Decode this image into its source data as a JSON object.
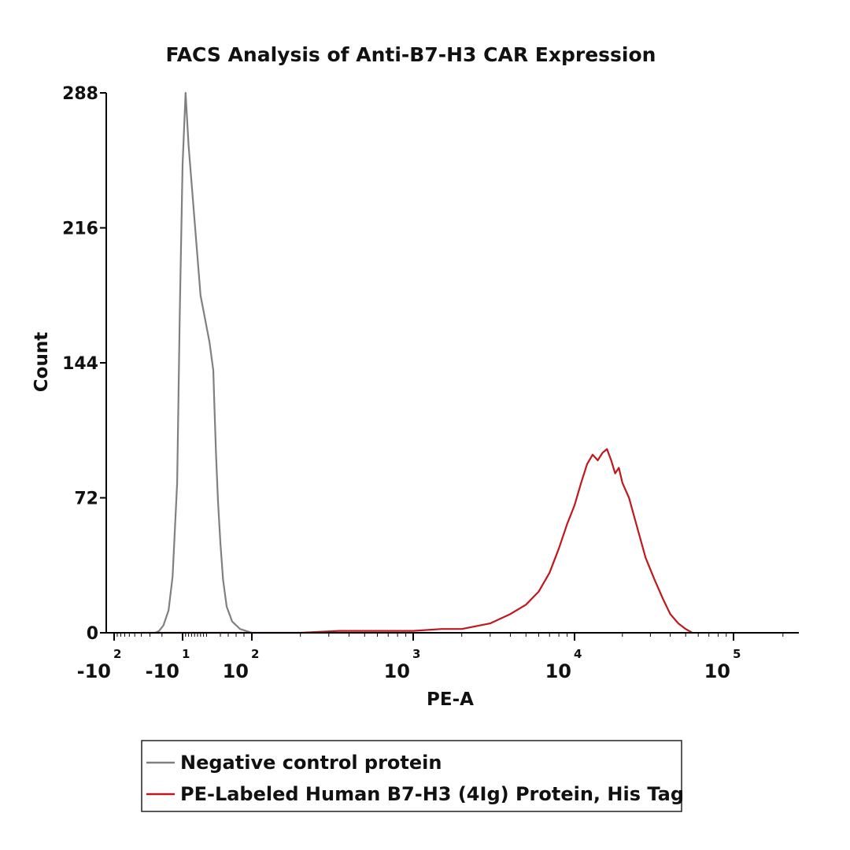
{
  "chart_data": {
    "type": "line",
    "title": "FACS Analysis of Anti-B7-H3 CAR Expression",
    "xlabel": "PE-A",
    "ylabel": "Count",
    "xscale": "biexponential",
    "ylim": [
      0,
      288
    ],
    "yticks": [
      0,
      72,
      144,
      216,
      288
    ],
    "xticks": [
      {
        "value": -100,
        "base": "-10",
        "exp": "2"
      },
      {
        "value": -10,
        "base": "-10",
        "exp": "1"
      },
      {
        "value": 100,
        "base": "10",
        "exp": "2"
      },
      {
        "value": 1000,
        "base": "10",
        "exp": "3"
      },
      {
        "value": 10000,
        "base": "10",
        "exp": "4"
      },
      {
        "value": 100000,
        "base": "10",
        "exp": "5"
      }
    ],
    "legend_position": "bottom-center",
    "series": [
      {
        "name": "Negative control protein",
        "color": "#808080",
        "points": [
          [
            -25,
            0
          ],
          [
            -22,
            1
          ],
          [
            -19,
            4
          ],
          [
            -16,
            12
          ],
          [
            -14,
            30
          ],
          [
            -12,
            80
          ],
          [
            -11,
            170
          ],
          [
            -10,
            250
          ],
          [
            -9,
            288
          ],
          [
            -8,
            260
          ],
          [
            -6,
            220
          ],
          [
            -4,
            180
          ],
          [
            -1,
            155
          ],
          [
            2,
            140
          ],
          [
            5,
            120
          ],
          [
            9,
            95
          ],
          [
            14,
            70
          ],
          [
            20,
            48
          ],
          [
            27,
            28
          ],
          [
            36,
            14
          ],
          [
            50,
            6
          ],
          [
            70,
            2
          ],
          [
            100,
            0
          ]
        ]
      },
      {
        "name": "PE-Labeled Human B7-H3 (4Ig) Protein, His Tag",
        "color": "#c0171d",
        "points": [
          [
            -40,
            0
          ],
          [
            200,
            0
          ],
          [
            350,
            1
          ],
          [
            600,
            1
          ],
          [
            1000,
            1
          ],
          [
            1500,
            2
          ],
          [
            2000,
            2
          ],
          [
            3000,
            5
          ],
          [
            4000,
            10
          ],
          [
            5000,
            15
          ],
          [
            6000,
            22
          ],
          [
            7000,
            32
          ],
          [
            8000,
            45
          ],
          [
            9000,
            58
          ],
          [
            10000,
            68
          ],
          [
            11000,
            80
          ],
          [
            12000,
            90
          ],
          [
            13000,
            95
          ],
          [
            14000,
            92
          ],
          [
            15000,
            96
          ],
          [
            16000,
            98
          ],
          [
            17000,
            92
          ],
          [
            18000,
            85
          ],
          [
            19000,
            88
          ],
          [
            20000,
            80
          ],
          [
            22000,
            72
          ],
          [
            25000,
            55
          ],
          [
            28000,
            40
          ],
          [
            32000,
            28
          ],
          [
            36000,
            18
          ],
          [
            40000,
            10
          ],
          [
            45000,
            5
          ],
          [
            50000,
            2
          ],
          [
            55000,
            0
          ]
        ]
      }
    ]
  }
}
